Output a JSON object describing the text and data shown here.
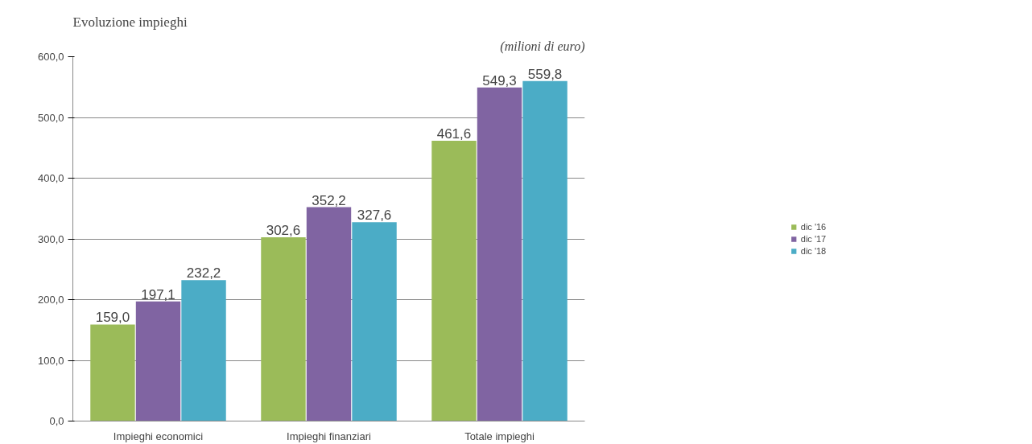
{
  "chart_data": {
    "type": "bar",
    "title": "Evoluzione impieghi",
    "annotations": [
      "(milioni di euro)"
    ],
    "categories": [
      "Impieghi economici",
      "Impieghi finanziari",
      "Totale impieghi"
    ],
    "series": [
      {
        "name": "dic '16",
        "color": "#9bbb59",
        "values": [
          159.0,
          302.6,
          461.6
        ],
        "value_labels": [
          "159,0",
          "302,6",
          "461,6"
        ]
      },
      {
        "name": "dic '17",
        "color": "#8064a2",
        "values": [
          197.1,
          352.2,
          549.3
        ],
        "value_labels": [
          "197,1",
          "352,2",
          "549,3"
        ]
      },
      {
        "name": "dic '18",
        "color": "#4bacc6",
        "values": [
          232.2,
          327.6,
          559.8
        ],
        "value_labels": [
          "232,2",
          "327,6",
          "559,8"
        ]
      }
    ],
    "ylim": [
      0,
      600
    ],
    "yticks": [
      {
        "value": 0,
        "label": "0,0"
      },
      {
        "value": 100,
        "label": "100,0"
      },
      {
        "value": 200,
        "label": "200,0"
      },
      {
        "value": 300,
        "label": "300,0"
      },
      {
        "value": 400,
        "label": "400,0"
      },
      {
        "value": 500,
        "label": "500,0"
      },
      {
        "value": 600,
        "label": "600,0"
      }
    ],
    "grid": "y",
    "legend": "right"
  }
}
